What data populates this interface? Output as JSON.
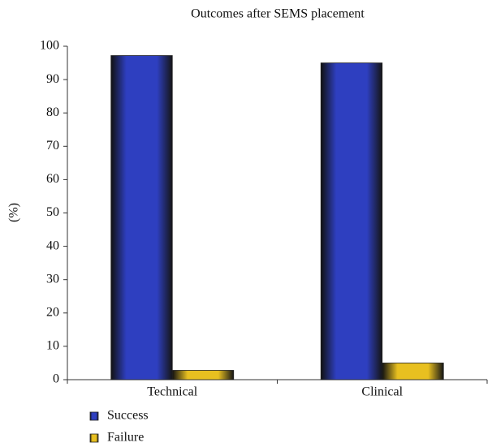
{
  "chart_data": {
    "type": "bar",
    "title": "Outcomes after SEMS placement",
    "y_label": "(%)",
    "categories": [
      "Technical",
      "Clinical"
    ],
    "series": [
      {
        "name": "Success",
        "color": "#2e3fc0",
        "values": [
          97.2,
          95
        ]
      },
      {
        "name": "Failure",
        "color": "#e8c020",
        "values": [
          2.8,
          5
        ]
      }
    ],
    "ylim": [
      0,
      100
    ],
    "yticks": [
      0,
      10,
      20,
      30,
      40,
      50,
      60,
      70,
      80,
      90,
      100
    ],
    "grid": false,
    "legend": "bottom-left"
  }
}
